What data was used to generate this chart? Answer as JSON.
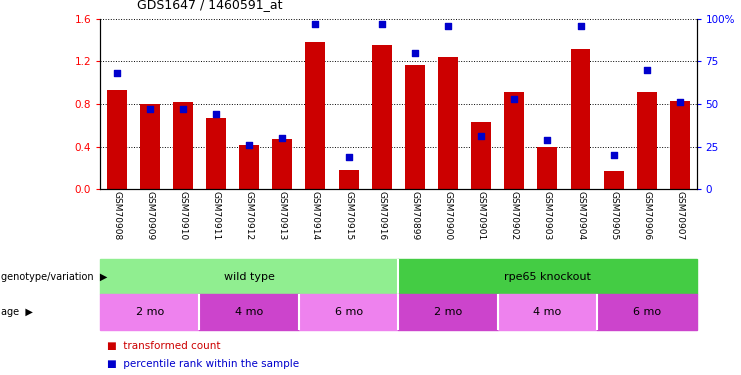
{
  "title": "GDS1647 / 1460591_at",
  "samples": [
    "GSM70908",
    "GSM70909",
    "GSM70910",
    "GSM70911",
    "GSM70912",
    "GSM70913",
    "GSM70914",
    "GSM70915",
    "GSM70916",
    "GSM70899",
    "GSM70900",
    "GSM70901",
    "GSM70902",
    "GSM70903",
    "GSM70904",
    "GSM70905",
    "GSM70906",
    "GSM70907"
  ],
  "transformed_count": [
    0.93,
    0.8,
    0.82,
    0.67,
    0.42,
    0.47,
    1.38,
    0.18,
    1.35,
    1.17,
    1.24,
    0.63,
    0.91,
    0.4,
    1.32,
    0.17,
    0.91,
    0.83
  ],
  "percentile_rank": [
    68,
    47,
    47,
    44,
    26,
    30,
    97,
    19,
    97,
    80,
    96,
    31,
    53,
    29,
    96,
    20,
    70,
    51
  ],
  "genotype_groups": [
    {
      "label": "wild type",
      "start": 0,
      "end": 8,
      "color": "#90EE90"
    },
    {
      "label": "rpe65 knockout",
      "start": 9,
      "end": 17,
      "color": "#44CC44"
    }
  ],
  "age_groups": [
    {
      "label": "2 mo",
      "start": 0,
      "end": 2,
      "color": "#EE82EE"
    },
    {
      "label": "4 mo",
      "start": 3,
      "end": 5,
      "color": "#CC44CC"
    },
    {
      "label": "6 mo",
      "start": 6,
      "end": 8,
      "color": "#EE82EE"
    },
    {
      "label": "2 mo",
      "start": 9,
      "end": 11,
      "color": "#CC44CC"
    },
    {
      "label": "4 mo",
      "start": 12,
      "end": 14,
      "color": "#EE82EE"
    },
    {
      "label": "6 mo",
      "start": 15,
      "end": 17,
      "color": "#CC44CC"
    }
  ],
  "bar_color": "#CC0000",
  "dot_color": "#0000CC",
  "ylim_left": [
    0,
    1.6
  ],
  "ylim_right": [
    0,
    100
  ],
  "yticks_left": [
    0,
    0.4,
    0.8,
    1.2,
    1.6
  ],
  "yticks_right": [
    0,
    25,
    50,
    75,
    100
  ],
  "background_color": "#FFFFFF",
  "names_area_color": "#C8C8C8",
  "bar_width": 0.6
}
